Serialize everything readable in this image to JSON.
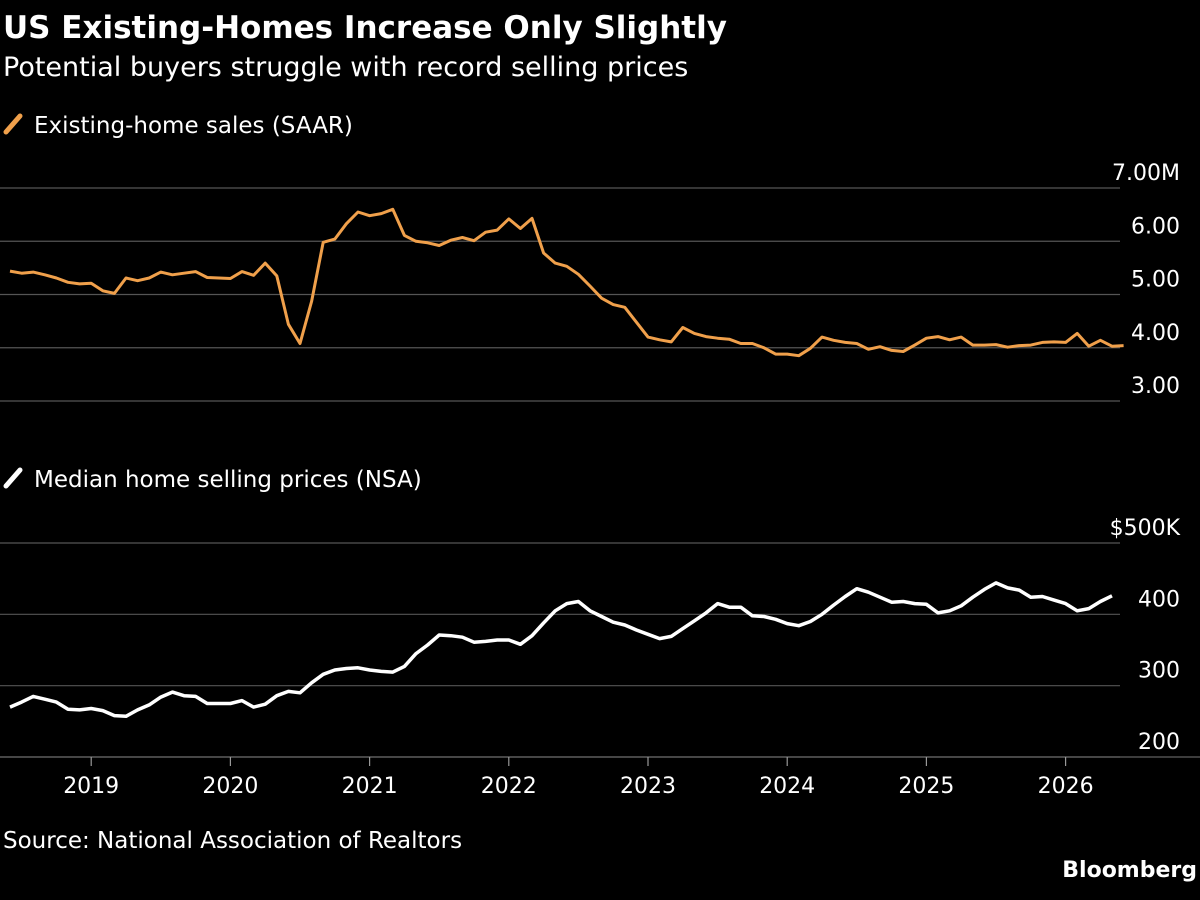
{
  "header": {
    "title": "US Existing-Homes Increase Only Slightly",
    "subtitle": "Potential buyers struggle with record selling prices"
  },
  "footer": {
    "source": "Source: National Association of Realtors",
    "brand": "Bloomberg"
  },
  "colors": {
    "background": "#000000",
    "sales": "#f0a04b",
    "prices": "#ffffff",
    "grid": "#555555"
  },
  "chart_data": [
    {
      "type": "line",
      "legend": "Existing-home sales (SAAR)",
      "series_color": "#f0a04b",
      "ylim": [
        3.0,
        7.0
      ],
      "yticks": [
        {
          "value": 7,
          "label": "7.00M"
        },
        {
          "value": 6,
          "label": "6.00"
        },
        {
          "value": 5,
          "label": "5.00"
        },
        {
          "value": 4,
          "label": "4.00"
        },
        {
          "value": 3,
          "label": "3.00"
        }
      ],
      "start": "2018-06",
      "frequency": "monthly",
      "values": [
        5.44,
        5.4,
        5.42,
        5.37,
        5.31,
        5.23,
        5.2,
        5.21,
        5.07,
        5.02,
        5.31,
        5.26,
        5.31,
        5.42,
        5.37,
        5.4,
        5.43,
        5.32,
        5.31,
        5.3,
        5.43,
        5.36,
        5.59,
        5.35,
        4.44,
        4.08,
        4.87,
        5.98,
        6.04,
        6.33,
        6.55,
        6.48,
        6.52,
        6.6,
        6.11,
        6.0,
        5.97,
        5.92,
        6.02,
        6.07,
        6.01,
        6.17,
        6.21,
        6.42,
        6.24,
        6.43,
        5.78,
        5.59,
        5.53,
        5.38,
        5.16,
        4.93,
        4.81,
        4.76,
        4.48,
        4.2,
        4.15,
        4.11,
        4.38,
        4.27,
        4.21,
        4.18,
        4.16,
        4.08,
        4.08,
        4.0,
        3.88,
        3.88,
        3.85,
        3.99,
        4.2,
        4.14,
        4.1,
        4.08,
        3.97,
        4.02,
        3.95,
        3.93,
        4.05,
        4.18,
        4.21,
        4.15,
        4.2,
        4.05,
        4.05,
        4.06,
        4.01,
        4.04,
        4.05,
        4.1,
        4.11,
        4.1,
        4.27,
        4.03,
        4.14,
        4.03,
        4.04
      ]
    },
    {
      "type": "line",
      "legend": "Median home selling prices (NSA)",
      "series_color": "#ffffff",
      "ylim": [
        200,
        500
      ],
      "yticks": [
        {
          "value": 500,
          "label": "$500K"
        },
        {
          "value": 400,
          "label": "400"
        },
        {
          "value": 300,
          "label": "300"
        },
        {
          "value": 200,
          "label": "200"
        }
      ],
      "start": "2018-06",
      "frequency": "monthly",
      "values": [
        270,
        277,
        285,
        281,
        277,
        267,
        266,
        268,
        265,
        258,
        257,
        266,
        273,
        284,
        291,
        286,
        285,
        275,
        275,
        275,
        279,
        270,
        274,
        286,
        292,
        290,
        304,
        316,
        322,
        324,
        325,
        322,
        320,
        319,
        327,
        345,
        357,
        371,
        370,
        368,
        361,
        362,
        364,
        364,
        358,
        370,
        388,
        405,
        415,
        418,
        405,
        397,
        389,
        385,
        378,
        372,
        366,
        369,
        380,
        391,
        402,
        415,
        410,
        410,
        398,
        397,
        393,
        387,
        384,
        390,
        400,
        413,
        425,
        436,
        431,
        424,
        417,
        418,
        415,
        414,
        402,
        405,
        412,
        424,
        435,
        444,
        437,
        434,
        424,
        425,
        420,
        415,
        405,
        408,
        418,
        426
      ]
    },
    {
      "type": "x-axis",
      "ticks": [
        "2019",
        "2020",
        "2021",
        "2022",
        "2023",
        "2024",
        "2025",
        "2026"
      ]
    }
  ]
}
